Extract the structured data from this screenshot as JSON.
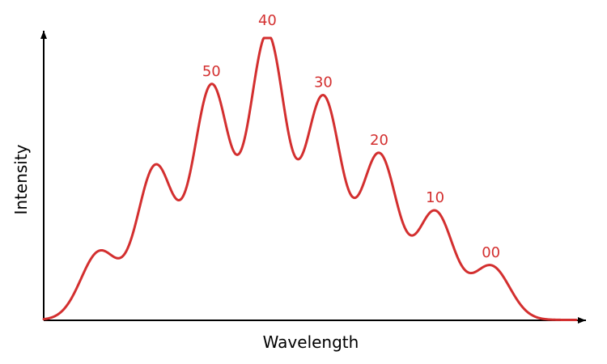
{
  "chart_data": {
    "type": "line",
    "title": "",
    "xlabel": "Wavelength",
    "ylabel": "Intensity",
    "grid": false,
    "legend": "none",
    "xlim": [
      0,
      100
    ],
    "ylim": [
      0,
      1
    ],
    "line_color": "#d32f2f",
    "peaks": [
      {
        "x": 10.5,
        "y": 0.24,
        "label": ""
      },
      {
        "x": 21.0,
        "y": 0.54,
        "label": ""
      },
      {
        "x": 31.5,
        "y": 0.82,
        "label": "50"
      },
      {
        "x": 42.0,
        "y": 1.0,
        "label": "40"
      },
      {
        "x": 52.5,
        "y": 0.78,
        "label": "30"
      },
      {
        "x": 63.0,
        "y": 0.58,
        "label": "20"
      },
      {
        "x": 73.5,
        "y": 0.38,
        "label": "10"
      },
      {
        "x": 84.0,
        "y": 0.19,
        "label": "00"
      }
    ]
  }
}
